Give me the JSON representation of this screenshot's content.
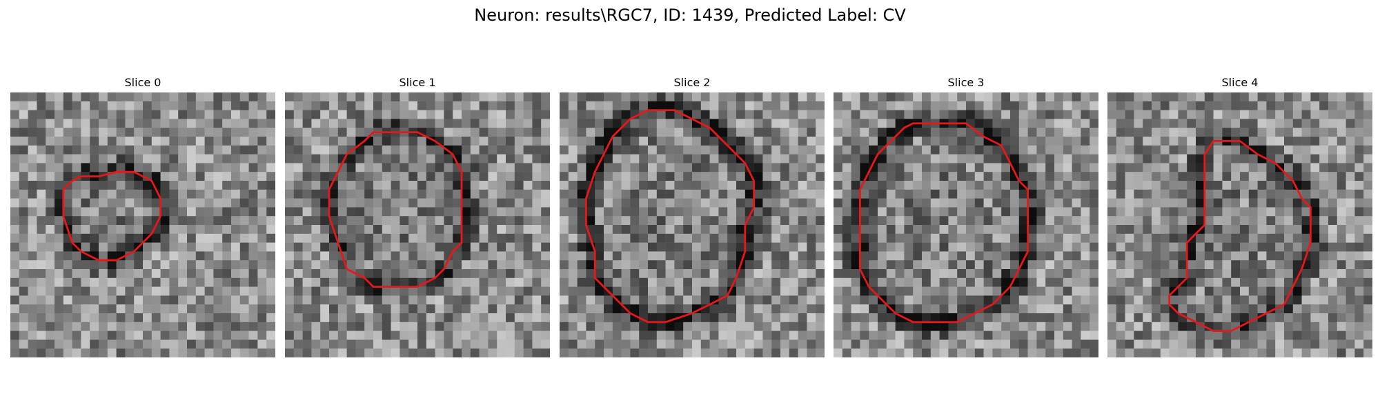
{
  "figure": {
    "title": "Neuron: results\\RGC7, ID: 1439, Predicted Label: CV"
  },
  "panels": [
    {
      "title": "Slice 0",
      "seed": 11,
      "ring_darkness": 0.35,
      "contour": [
        [
          10,
          9.5
        ],
        [
          12,
          9
        ],
        [
          14,
          9
        ],
        [
          16,
          10
        ],
        [
          17,
          12
        ],
        [
          17,
          14
        ],
        [
          16,
          16
        ],
        [
          15,
          17
        ],
        [
          14,
          18
        ],
        [
          12,
          19
        ],
        [
          10,
          19
        ],
        [
          8,
          18
        ],
        [
          7,
          17
        ],
        [
          6,
          14
        ],
        [
          6,
          11
        ],
        [
          7,
          10
        ],
        [
          8,
          9.5
        ]
      ]
    },
    {
      "title": "Slice 1",
      "seed": 23,
      "ring_darkness": 0.3,
      "contour": [
        [
          10,
          4.5
        ],
        [
          15,
          4.5
        ],
        [
          17,
          5.5
        ],
        [
          19,
          7
        ],
        [
          20,
          9
        ],
        [
          20,
          12
        ],
        [
          20,
          17
        ],
        [
          19,
          18
        ],
        [
          18,
          20
        ],
        [
          17,
          21
        ],
        [
          15,
          22
        ],
        [
          13,
          22
        ],
        [
          10,
          22
        ],
        [
          9,
          21
        ],
        [
          7,
          20
        ],
        [
          6,
          17
        ],
        [
          5,
          14
        ],
        [
          5,
          11
        ],
        [
          6,
          9
        ],
        [
          7,
          7
        ],
        [
          9,
          5.5
        ]
      ]
    },
    {
      "title": "Slice 2",
      "seed": 37,
      "ring_darkness": 0.45,
      "contour": [
        [
          10,
          2
        ],
        [
          13,
          2
        ],
        [
          15,
          3
        ],
        [
          17,
          4
        ],
        [
          19,
          6
        ],
        [
          21,
          8
        ],
        [
          22,
          10
        ],
        [
          22,
          13
        ],
        [
          21,
          15
        ],
        [
          21,
          18
        ],
        [
          20,
          21
        ],
        [
          19,
          23
        ],
        [
          17,
          24
        ],
        [
          15,
          25
        ],
        [
          12,
          26
        ],
        [
          10,
          26
        ],
        [
          8,
          25
        ],
        [
          6,
          23
        ],
        [
          4,
          21
        ],
        [
          4,
          18
        ],
        [
          3,
          15
        ],
        [
          3,
          12
        ],
        [
          4,
          9
        ],
        [
          5,
          7
        ],
        [
          6,
          5
        ],
        [
          8,
          3
        ]
      ]
    },
    {
      "title": "Slice 3",
      "seed": 41,
      "ring_darkness": 0.4,
      "contour": [
        [
          9,
          3.5
        ],
        [
          15,
          3.5
        ],
        [
          17,
          5
        ],
        [
          19,
          6
        ],
        [
          20,
          8
        ],
        [
          21,
          10
        ],
        [
          22,
          11
        ],
        [
          22,
          14
        ],
        [
          22,
          18
        ],
        [
          21,
          20
        ],
        [
          20,
          22
        ],
        [
          18,
          24
        ],
        [
          16,
          25
        ],
        [
          14,
          26
        ],
        [
          9,
          26
        ],
        [
          7,
          25
        ],
        [
          6,
          24
        ],
        [
          4,
          22
        ],
        [
          3,
          20
        ],
        [
          3,
          16
        ],
        [
          3,
          11
        ],
        [
          4,
          9
        ],
        [
          5,
          7
        ],
        [
          7,
          5
        ],
        [
          8,
          4
        ]
      ]
    },
    {
      "title": "Slice 4",
      "seed": 53,
      "ring_darkness": 0.3,
      "contour": [
        [
          12,
          5.5
        ],
        [
          15,
          5.5
        ],
        [
          17,
          7
        ],
        [
          19,
          8
        ],
        [
          21,
          10
        ],
        [
          22,
          12
        ],
        [
          23,
          13
        ],
        [
          23,
          17
        ],
        [
          22,
          20
        ],
        [
          21,
          22
        ],
        [
          20,
          24
        ],
        [
          18,
          25
        ],
        [
          16,
          26
        ],
        [
          14,
          27
        ],
        [
          12,
          27
        ],
        [
          10,
          26
        ],
        [
          8,
          25
        ],
        [
          7,
          24
        ],
        [
          7,
          23
        ],
        [
          8,
          22
        ],
        [
          9,
          21
        ],
        [
          9,
          19
        ],
        [
          9,
          17
        ],
        [
          10,
          16
        ],
        [
          11,
          15
        ],
        [
          11,
          10
        ],
        [
          11,
          7
        ]
      ]
    }
  ],
  "colors": {
    "contour": "#e8171a"
  }
}
